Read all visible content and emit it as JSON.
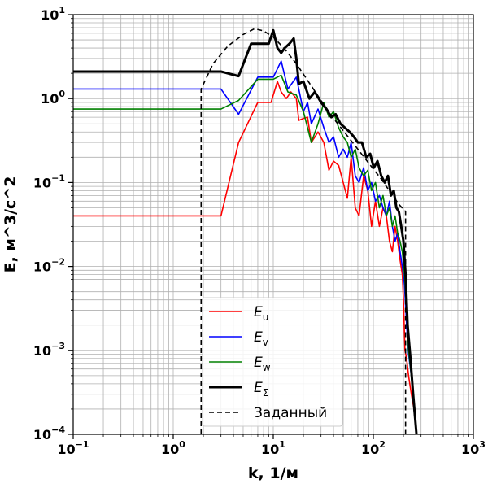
{
  "chart_data": {
    "type": "line",
    "xlabel": "k, 1/м",
    "ylabel": "E, м^3/с^2",
    "xscale": "log",
    "yscale": "log",
    "xlim": [
      0.1,
      1000
    ],
    "ylim": [
      0.0001,
      10
    ],
    "grid": "major and minor",
    "legend_placement": "lower-center",
    "x_ticks": [
      {
        "base": "10",
        "exp": "−1"
      },
      {
        "base": "10",
        "exp": "0"
      },
      {
        "base": "10",
        "exp": "1"
      },
      {
        "base": "10",
        "exp": "2"
      },
      {
        "base": "10",
        "exp": "3"
      }
    ],
    "y_ticks": [
      {
        "base": "10",
        "exp": "−4"
      },
      {
        "base": "10",
        "exp": "−3"
      },
      {
        "base": "10",
        "exp": "−2"
      },
      {
        "base": "10",
        "exp": "−1"
      },
      {
        "base": "10",
        "exp": "0"
      },
      {
        "base": "10",
        "exp": "1"
      }
    ],
    "series": [
      {
        "name": "E_u",
        "legend_base": "E",
        "legend_sub": "u",
        "color": "#ff0000",
        "style": "solid",
        "width": "normal",
        "x": [
          0.1,
          3.0,
          4.5,
          7.0,
          9.5,
          11.0,
          12.0,
          13.5,
          15.0,
          17.0,
          18.0,
          20.0,
          22.0,
          24.0,
          28.0,
          32.0,
          36.0,
          40.0,
          45.0,
          50.0,
          55.0,
          60.0,
          66.0,
          72.0,
          80.0,
          88.0,
          96.0,
          105.0,
          115.0,
          125.0,
          135.0,
          145.0,
          155.0,
          165.0,
          175.0,
          185.0,
          195.0,
          200.0,
          207.0,
          215.0,
          225.0,
          240.0,
          255.0,
          270.0
        ],
        "y": [
          0.04,
          0.04,
          0.3,
          0.9,
          0.9,
          1.6,
          1.2,
          1.0,
          1.2,
          1.0,
          0.55,
          0.58,
          0.6,
          0.3,
          0.4,
          0.3,
          0.14,
          0.18,
          0.16,
          0.1,
          0.065,
          0.2,
          0.05,
          0.04,
          0.12,
          0.08,
          0.03,
          0.06,
          0.03,
          0.05,
          0.04,
          0.02,
          0.015,
          0.03,
          0.02,
          0.012,
          0.008,
          0.004,
          0.001,
          0.0008,
          0.0005,
          0.0003,
          0.0002,
          0.0001
        ]
      },
      {
        "name": "E_v",
        "legend_base": "E",
        "legend_sub": "v",
        "color": "#0000ff",
        "style": "solid",
        "width": "normal",
        "x": [
          0.1,
          3.0,
          4.5,
          7.0,
          10.0,
          12.0,
          14.0,
          17.0,
          20.0,
          22.0,
          24.0,
          28.0,
          32.0,
          36.0,
          40.0,
          45.0,
          50.0,
          55.0,
          60.0,
          66.0,
          72.0,
          80.0,
          88.0,
          96.0,
          105.0,
          115.0,
          125.0,
          135.0,
          145.0,
          155.0,
          165.0,
          175.0,
          185.0,
          195.0,
          205.0,
          215.0,
          225.0,
          240.0,
          255.0,
          270.0
        ],
        "y": [
          1.3,
          1.3,
          0.65,
          1.8,
          1.8,
          2.8,
          1.3,
          1.8,
          0.7,
          0.9,
          0.5,
          0.75,
          0.45,
          0.3,
          0.35,
          0.2,
          0.25,
          0.2,
          0.3,
          0.12,
          0.1,
          0.15,
          0.08,
          0.1,
          0.06,
          0.07,
          0.05,
          0.04,
          0.06,
          0.03,
          0.02,
          0.025,
          0.015,
          0.01,
          0.006,
          0.002,
          0.0009,
          0.0005,
          0.0002,
          0.0001
        ]
      },
      {
        "name": "E_w",
        "legend_base": "E",
        "legend_sub": "w",
        "color": "#008000",
        "style": "solid",
        "width": "normal",
        "x": [
          0.1,
          3.0,
          4.5,
          7.0,
          10.0,
          12.0,
          14.0,
          17.0,
          20.0,
          22.0,
          24.0,
          28.0,
          32.0,
          36.0,
          40.0,
          45.0,
          50.0,
          55.0,
          60.0,
          66.0,
          72.0,
          80.0,
          88.0,
          96.0,
          105.0,
          115.0,
          125.0,
          135.0,
          145.0,
          155.0,
          165.0,
          175.0,
          185.0,
          195.0,
          205.0,
          215.0,
          225.0,
          240.0,
          255.0,
          270.0
        ],
        "y": [
          0.75,
          0.75,
          0.95,
          1.7,
          1.7,
          1.9,
          1.2,
          1.1,
          0.7,
          0.45,
          0.3,
          0.5,
          0.9,
          0.6,
          0.7,
          0.45,
          0.35,
          0.3,
          0.2,
          0.25,
          0.15,
          0.12,
          0.14,
          0.08,
          0.1,
          0.05,
          0.07,
          0.04,
          0.05,
          0.03,
          0.04,
          0.025,
          0.02,
          0.015,
          0.008,
          0.003,
          0.001,
          0.0005,
          0.0002,
          0.0001
        ]
      },
      {
        "name": "E_Σ",
        "legend_base": "E",
        "legend_sub": "Σ",
        "color": "#000000",
        "style": "solid",
        "width": "thick",
        "x": [
          0.1,
          3.0,
          4.5,
          6.0,
          9.0,
          10.0,
          11.0,
          12.0,
          13.0,
          14.5,
          16.0,
          17.0,
          18.0,
          20.0,
          23.0,
          26.0,
          30.0,
          34.0,
          38.0,
          42.0,
          47.0,
          52.0,
          58.0,
          64.0,
          70.0,
          77.0,
          85.0,
          93.0,
          101.0,
          110.0,
          120.0,
          130.0,
          140.0,
          150.0,
          160.0,
          170.0,
          180.0,
          190.0,
          200.0,
          210.0,
          220.0,
          235.0,
          250.0,
          270.0
        ],
        "y": [
          2.1,
          2.1,
          1.85,
          4.5,
          4.5,
          6.5,
          4.0,
          3.5,
          4.0,
          4.5,
          5.2,
          3.0,
          1.5,
          1.6,
          1.0,
          1.2,
          0.9,
          0.75,
          0.6,
          0.65,
          0.5,
          0.45,
          0.4,
          0.35,
          0.3,
          0.3,
          0.2,
          0.22,
          0.15,
          0.18,
          0.12,
          0.1,
          0.12,
          0.07,
          0.08,
          0.05,
          0.045,
          0.03,
          0.02,
          0.008,
          0.002,
          0.0008,
          0.0003,
          0.0001
        ]
      },
      {
        "name": "Заданный",
        "legend_base": "Заданный",
        "legend_sub": "",
        "color": "#000000",
        "style": "dashed",
        "width": "normal",
        "x": [
          1.9,
          1.9,
          2.5,
          3.5,
          5.0,
          6.5,
          8.0,
          10.0,
          13.0,
          17.0,
          22.0,
          30.0,
          40.0,
          55.0,
          70.0,
          90.0,
          120.0,
          150.0,
          180.0,
          210.0,
          210.0
        ],
        "y": [
          0.0001,
          1.3,
          2.6,
          4.2,
          5.8,
          6.8,
          6.4,
          5.4,
          3.9,
          2.6,
          1.65,
          0.95,
          0.58,
          0.36,
          0.25,
          0.17,
          0.11,
          0.075,
          0.055,
          0.045,
          0.0001
        ]
      }
    ]
  }
}
